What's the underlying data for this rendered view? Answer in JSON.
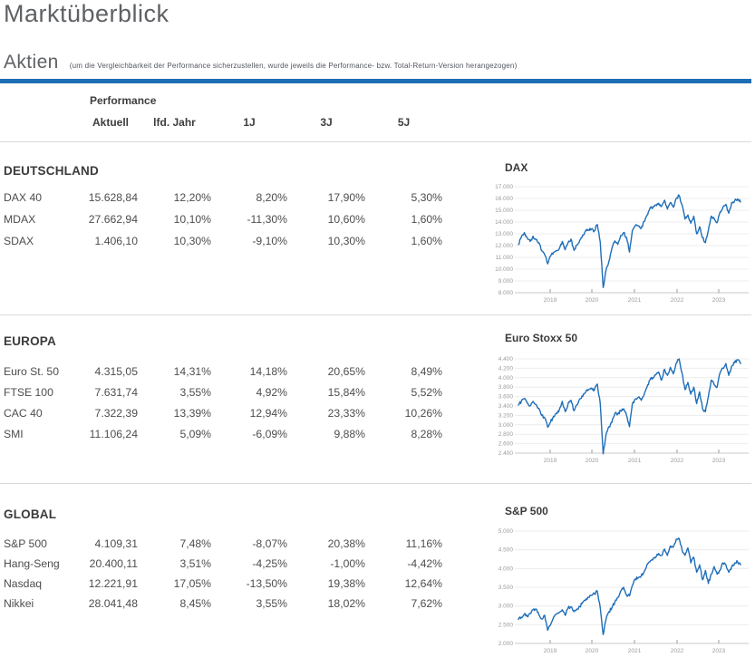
{
  "page": {
    "title": "Marktüberblick",
    "section_label": "Aktien",
    "section_note": "(um die Vergleichbarkeit der Performance sicherzustellen, wurde jeweils die Performance- bzw. Total-Return-Version herangezogen)"
  },
  "colors": {
    "accent_bar": "#1e6eb4",
    "chart_line": "#1f6eb8",
    "grid_line": "#ececec",
    "axis_line": "#c9c9c9",
    "tick_label": "#9b9b9b",
    "heading_text": "#3b3b3b",
    "body_text": "#4d4d4d"
  },
  "table": {
    "group_header": "Performance",
    "columns": [
      "Aktuell",
      "lfd. Jahr",
      "1J",
      "3J",
      "5J"
    ],
    "sections": [
      {
        "name": "DEUTSCHLAND",
        "rows": [
          {
            "label": "DAX 40",
            "values": [
              "15.628,84",
              "12,20%",
              "8,20%",
              "17,90%",
              "5,30%"
            ]
          },
          {
            "label": "MDAX",
            "values": [
              "27.662,94",
              "10,10%",
              "-11,30%",
              "10,60%",
              "1,60%"
            ]
          },
          {
            "label": "SDAX",
            "values": [
              "1.406,10",
              "10,30%",
              "-9,10%",
              "10,30%",
              "1,60%"
            ]
          }
        ]
      },
      {
        "name": "EUROPA",
        "rows": [
          {
            "label": "Euro St. 50",
            "values": [
              "4.315,05",
              "14,31%",
              "14,18%",
              "20,65%",
              "8,49%"
            ]
          },
          {
            "label": "FTSE 100",
            "values": [
              "7.631,74",
              "3,55%",
              "4,92%",
              "15,84%",
              "5,52%"
            ]
          },
          {
            "label": "CAC 40",
            "values": [
              "7.322,39",
              "13,39%",
              "12,94%",
              "23,33%",
              "10,26%"
            ]
          },
          {
            "label": "SMI",
            "values": [
              "11.106,24",
              "5,09%",
              "-6,09%",
              "9,88%",
              "8,28%"
            ]
          }
        ]
      },
      {
        "name": "GLOBAL",
        "rows": [
          {
            "label": "S&P 500",
            "values": [
              "4.109,31",
              "7,48%",
              "-8,07%",
              "20,38%",
              "11,16%"
            ]
          },
          {
            "label": "Hang-Seng",
            "values": [
              "20.400,11",
              "3,51%",
              "-4,25%",
              "-1,00%",
              "-4,42%"
            ]
          },
          {
            "label": "Nasdaq",
            "values": [
              "12.221,91",
              "17,05%",
              "-13,50%",
              "19,38%",
              "12,64%"
            ]
          },
          {
            "label": "Nikkei",
            "values": [
              "28.041,48",
              "8,45%",
              "3,55%",
              "18,02%",
              "7,62%"
            ]
          }
        ]
      }
    ]
  },
  "chart_data": [
    {
      "id": "dax",
      "type": "line",
      "title": "DAX",
      "x_range": [
        "2018",
        "2023"
      ],
      "xticks": [
        "2019",
        "2020",
        "2021",
        "2022",
        "2023"
      ],
      "yticks": [
        "17.000",
        "16.000",
        "15.000",
        "14.000",
        "13.000",
        "12.000",
        "11.000",
        "10.000",
        "9.000",
        "8.000"
      ],
      "ylim": [
        8000,
        17000
      ],
      "grid": true,
      "legend": "none",
      "points": [
        12100,
        12750,
        13100,
        12650,
        12350,
        12800,
        12500,
        12250,
        11550,
        11200,
        10450,
        11100,
        11400,
        11550,
        11750,
        12350,
        11650,
        12250,
        12550,
        11600,
        12050,
        12450,
        12900,
        13250,
        13300,
        13400,
        13250,
        13780,
        12300,
        8440,
        9950,
        10700,
        11800,
        12400,
        12100,
        12850,
        13100,
        12700,
        11450,
        13300,
        13700,
        13650,
        13450,
        14050,
        14600,
        15150,
        15250,
        15450,
        15600,
        15350,
        15850,
        15100,
        15650,
        15250,
        16000,
        16250,
        15450,
        14250,
        14600,
        13900,
        14500,
        13000,
        13600,
        12650,
        12250,
        13300,
        14500,
        14300,
        13950,
        14850,
        15250,
        15500,
        14750,
        15650,
        15800,
        15950,
        15700
      ]
    },
    {
      "id": "es50",
      "type": "line",
      "title": "Euro Stoxx 50",
      "x_range": [
        "2018",
        "2023"
      ],
      "xticks": [
        "2019",
        "2020",
        "2021",
        "2022",
        "2023"
      ],
      "yticks": [
        "4.400",
        "4.200",
        "4.000",
        "3.800",
        "3.600",
        "3.400",
        "3.200",
        "3.000",
        "2.800",
        "2.600",
        "2.400"
      ],
      "ylim": [
        2400,
        4400
      ],
      "grid": true,
      "legend": "none",
      "points": [
        3420,
        3500,
        3560,
        3460,
        3400,
        3500,
        3430,
        3350,
        3200,
        3150,
        2950,
        3060,
        3180,
        3250,
        3320,
        3500,
        3280,
        3450,
        3520,
        3300,
        3420,
        3550,
        3600,
        3690,
        3750,
        3780,
        3740,
        3865,
        3450,
        2385,
        2800,
        2960,
        3050,
        3240,
        3230,
        3300,
        3340,
        3200,
        2960,
        3450,
        3550,
        3580,
        3520,
        3640,
        3800,
        3950,
        4000,
        4060,
        4120,
        3950,
        4180,
        4050,
        4220,
        4080,
        4310,
        4400,
        4100,
        3750,
        3900,
        3650,
        3800,
        3450,
        3700,
        3350,
        3280,
        3600,
        3950,
        3850,
        3800,
        4100,
        4200,
        4300,
        4050,
        4250,
        4320,
        4380,
        4300
      ]
    },
    {
      "id": "sp500",
      "type": "line",
      "title": "S&P 500",
      "x_range": [
        "2018",
        "2023"
      ],
      "xticks": [
        "2019",
        "2020",
        "2021",
        "2022",
        "2023"
      ],
      "yticks": [
        "5.000",
        "4.500",
        "4.000",
        "3.500",
        "3.000",
        "2.500",
        "2.000"
      ],
      "ylim": [
        2000,
        5000
      ],
      "grid": true,
      "legend": "none",
      "points": [
        2640,
        2700,
        2780,
        2720,
        2800,
        2900,
        2920,
        2760,
        2650,
        2750,
        2350,
        2500,
        2700,
        2780,
        2830,
        2900,
        2750,
        2950,
        2980,
        2850,
        2920,
        2980,
        3100,
        3150,
        3230,
        3280,
        3330,
        3390,
        2950,
        2237,
        2650,
        2850,
        2950,
        3100,
        3230,
        3400,
        3500,
        3300,
        3270,
        3550,
        3720,
        3750,
        3800,
        3900,
        4100,
        4180,
        4230,
        4300,
        4400,
        4350,
        4520,
        4350,
        4600,
        4570,
        4780,
        4800,
        4500,
        4350,
        4550,
        4150,
        4300,
        3900,
        4100,
        3700,
        3950,
        3600,
        3850,
        4050,
        3850,
        3950,
        4150,
        4100,
        3900,
        4050,
        4150,
        4180,
        4100
      ]
    }
  ]
}
